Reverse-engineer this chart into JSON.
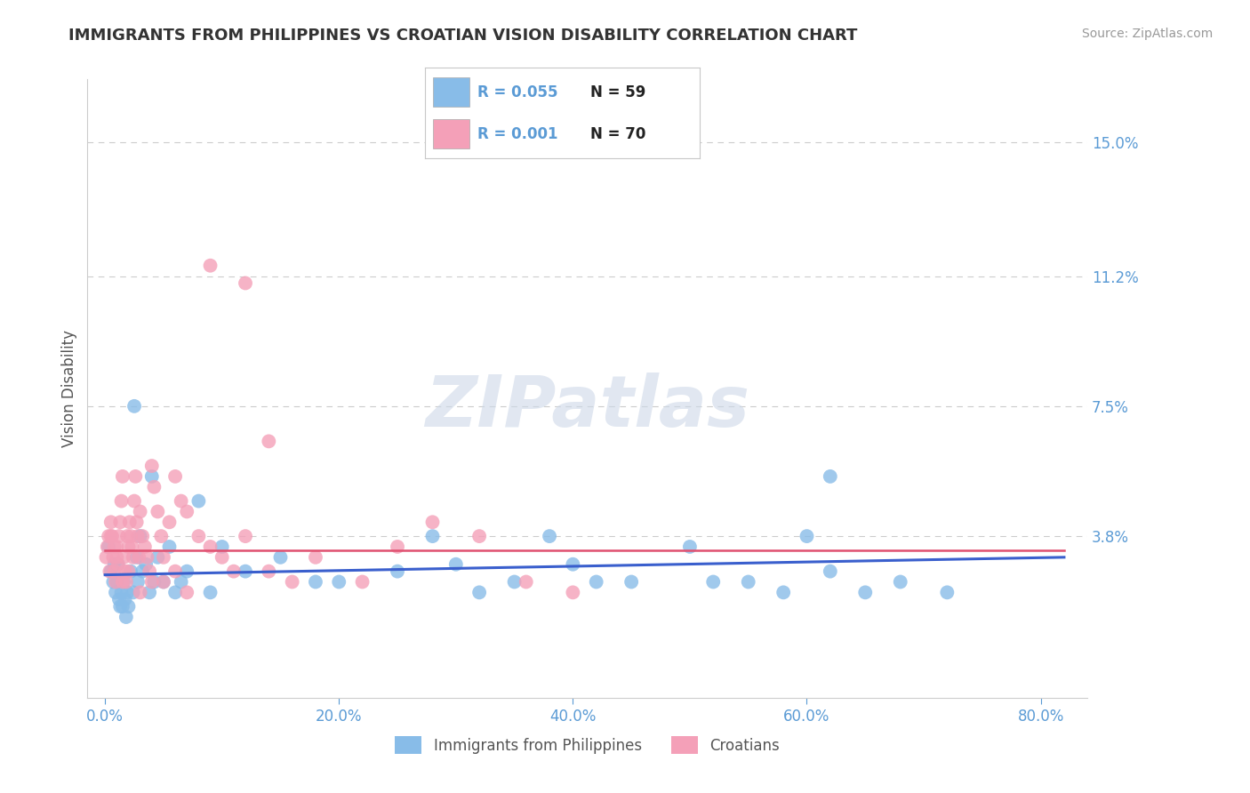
{
  "title": "IMMIGRANTS FROM PHILIPPINES VS CROATIAN VISION DISABILITY CORRELATION CHART",
  "source": "Source: ZipAtlas.com",
  "ylabel": "Vision Disability",
  "yticks": [
    0.038,
    0.075,
    0.112,
    0.15
  ],
  "ytick_labels": [
    "3.8%",
    "7.5%",
    "11.2%",
    "15.0%"
  ],
  "xticks": [
    0.0,
    0.2,
    0.4,
    0.6,
    0.8
  ],
  "xtick_labels": [
    "0.0%",
    "20.0%",
    "40.0%",
    "60.0%",
    "80.0%"
  ],
  "xlim": [
    -0.015,
    0.84
  ],
  "ylim": [
    -0.008,
    0.168
  ],
  "legend_r1": "R = 0.055",
  "legend_n1": "N = 59",
  "legend_r2": "R = 0.001",
  "legend_n2": "N = 70",
  "series1_label": "Immigrants from Philippines",
  "series2_label": "Croatians",
  "color1": "#88bce8",
  "color2": "#f4a0b8",
  "trend1_color": "#3a5fcd",
  "trend2_color": "#e05070",
  "watermark_color": "#cdd8e8",
  "background_color": "#ffffff",
  "grid_color": "#cccccc",
  "tick_label_color": "#5b9bd5",
  "title_color": "#333333",
  "ylabel_color": "#555555",
  "scatter1_x": [
    0.003,
    0.005,
    0.007,
    0.008,
    0.009,
    0.01,
    0.011,
    0.012,
    0.013,
    0.014,
    0.015,
    0.016,
    0.017,
    0.018,
    0.019,
    0.02,
    0.022,
    0.024,
    0.025,
    0.027,
    0.028,
    0.03,
    0.032,
    0.035,
    0.038,
    0.04,
    0.042,
    0.045,
    0.05,
    0.055,
    0.06,
    0.065,
    0.07,
    0.08,
    0.09,
    0.1,
    0.12,
    0.15,
    0.18,
    0.2,
    0.25,
    0.28,
    0.3,
    0.32,
    0.35,
    0.38,
    0.4,
    0.42,
    0.45,
    0.5,
    0.52,
    0.55,
    0.58,
    0.6,
    0.62,
    0.65,
    0.68,
    0.72,
    0.62
  ],
  "scatter1_y": [
    0.035,
    0.028,
    0.025,
    0.03,
    0.022,
    0.025,
    0.03,
    0.02,
    0.018,
    0.022,
    0.018,
    0.025,
    0.02,
    0.015,
    0.022,
    0.018,
    0.028,
    0.022,
    0.075,
    0.032,
    0.025,
    0.038,
    0.028,
    0.03,
    0.022,
    0.055,
    0.025,
    0.032,
    0.025,
    0.035,
    0.022,
    0.025,
    0.028,
    0.048,
    0.022,
    0.035,
    0.028,
    0.032,
    0.025,
    0.025,
    0.028,
    0.038,
    0.03,
    0.022,
    0.025,
    0.038,
    0.03,
    0.025,
    0.025,
    0.035,
    0.025,
    0.025,
    0.022,
    0.038,
    0.028,
    0.022,
    0.025,
    0.022,
    0.055
  ],
  "scatter2_x": [
    0.001,
    0.002,
    0.003,
    0.004,
    0.005,
    0.006,
    0.007,
    0.008,
    0.009,
    0.01,
    0.011,
    0.012,
    0.013,
    0.014,
    0.015,
    0.016,
    0.017,
    0.018,
    0.019,
    0.02,
    0.021,
    0.022,
    0.023,
    0.024,
    0.025,
    0.026,
    0.027,
    0.028,
    0.029,
    0.03,
    0.032,
    0.034,
    0.036,
    0.038,
    0.04,
    0.042,
    0.045,
    0.048,
    0.05,
    0.055,
    0.06,
    0.065,
    0.07,
    0.08,
    0.09,
    0.1,
    0.11,
    0.12,
    0.14,
    0.16,
    0.18,
    0.22,
    0.25,
    0.28,
    0.32,
    0.36,
    0.4,
    0.14,
    0.12,
    0.09,
    0.07,
    0.06,
    0.05,
    0.04,
    0.03,
    0.02,
    0.015,
    0.01,
    0.008,
    0.005
  ],
  "scatter2_y": [
    0.032,
    0.035,
    0.038,
    0.028,
    0.042,
    0.038,
    0.032,
    0.028,
    0.025,
    0.035,
    0.03,
    0.038,
    0.042,
    0.048,
    0.055,
    0.032,
    0.028,
    0.025,
    0.038,
    0.035,
    0.042,
    0.038,
    0.035,
    0.032,
    0.048,
    0.055,
    0.042,
    0.038,
    0.032,
    0.045,
    0.038,
    0.035,
    0.032,
    0.028,
    0.058,
    0.052,
    0.045,
    0.038,
    0.032,
    0.042,
    0.055,
    0.048,
    0.045,
    0.038,
    0.035,
    0.032,
    0.028,
    0.038,
    0.028,
    0.025,
    0.032,
    0.025,
    0.035,
    0.042,
    0.038,
    0.025,
    0.022,
    0.065,
    0.11,
    0.115,
    0.022,
    0.028,
    0.025,
    0.025,
    0.022,
    0.028,
    0.025,
    0.032,
    0.035,
    0.038
  ],
  "trend1_x": [
    0.0,
    0.82
  ],
  "trend1_y": [
    0.027,
    0.032
  ],
  "trend2_x": [
    0.0,
    0.82
  ],
  "trend2_y": [
    0.034,
    0.034
  ]
}
